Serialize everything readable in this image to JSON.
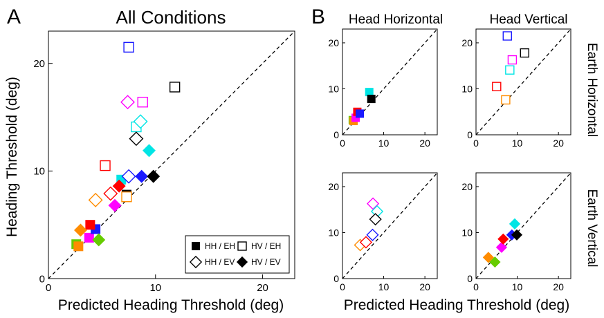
{
  "panel_labels": {
    "a": "A",
    "b": "B"
  },
  "texts": {
    "main_title": "All Conditions",
    "main_xlabel": "Predicted Heading Threshold (deg)",
    "main_ylabel": "Heading Threshold (deg)",
    "col_head_horizontal": "Head Horizontal",
    "col_head_vertical": "Head Vertical",
    "row_earth_horizontal": "Earth Horizontal",
    "row_earth_vertical": "Earth Vertical",
    "grid_xlabel": "Predicted Heading Threshold (deg)"
  },
  "legend": [
    {
      "marker": "filled-square",
      "label": "HH / EH"
    },
    {
      "marker": "open-square",
      "label": "HV / EH"
    },
    {
      "marker": "open-diamond",
      "label": "HH / EV"
    },
    {
      "marker": "filled-diamond",
      "label": "HV / EV"
    }
  ],
  "colors": {
    "red": "#ff0000",
    "orange": "#ff8c00",
    "green": "#66cc00",
    "blue": "#1a1aff",
    "magenta": "#ff00ff",
    "cyan": "#00e5e5",
    "black": "#000000",
    "unity_line": "#000000"
  },
  "chart_data": [
    {
      "id": "all_conditions",
      "type": "scatter",
      "title": "All Conditions",
      "xlabel": "Predicted Heading Threshold (deg)",
      "ylabel": "Heading Threshold (deg)",
      "xlim": [
        0,
        23
      ],
      "ylim": [
        0,
        23
      ],
      "xticks": [
        0,
        10,
        20
      ],
      "yticks": [
        0,
        10,
        20
      ],
      "reference_line": "unity (dashed)",
      "legend_position": "bottom-right",
      "points": [
        {
          "x": 3.8,
          "y": 3.8,
          "marker": "filled-square",
          "color": "magenta"
        },
        {
          "x": 2.6,
          "y": 3.2,
          "marker": "filled-square",
          "color": "green"
        },
        {
          "x": 2.8,
          "y": 3.0,
          "marker": "filled-square",
          "color": "orange"
        },
        {
          "x": 4.4,
          "y": 4.6,
          "marker": "filled-square",
          "color": "blue"
        },
        {
          "x": 3.9,
          "y": 5.0,
          "marker": "filled-square",
          "color": "red"
        },
        {
          "x": 6.8,
          "y": 9.2,
          "marker": "filled-square",
          "color": "cyan"
        },
        {
          "x": 7.3,
          "y": 7.8,
          "marker": "filled-square",
          "color": "black"
        },
        {
          "x": 5.3,
          "y": 10.5,
          "marker": "open-square",
          "color": "red"
        },
        {
          "x": 7.3,
          "y": 7.6,
          "marker": "open-square",
          "color": "orange"
        },
        {
          "x": 7.5,
          "y": 21.5,
          "marker": "open-square",
          "color": "blue"
        },
        {
          "x": 8.8,
          "y": 16.4,
          "marker": "open-square",
          "color": "magenta"
        },
        {
          "x": 8.2,
          "y": 14.1,
          "marker": "open-square",
          "color": "cyan"
        },
        {
          "x": 11.8,
          "y": 17.8,
          "marker": "open-square",
          "color": "black"
        },
        {
          "x": 4.4,
          "y": 7.3,
          "marker": "open-diamond",
          "color": "orange"
        },
        {
          "x": 5.8,
          "y": 7.9,
          "marker": "open-diamond",
          "color": "red"
        },
        {
          "x": 7.5,
          "y": 9.5,
          "marker": "open-diamond",
          "color": "blue"
        },
        {
          "x": 7.4,
          "y": 16.4,
          "marker": "open-diamond",
          "color": "magenta"
        },
        {
          "x": 8.6,
          "y": 14.6,
          "marker": "open-diamond",
          "color": "cyan"
        },
        {
          "x": 8.2,
          "y": 13.0,
          "marker": "open-diamond",
          "color": "black"
        },
        {
          "x": 3.0,
          "y": 4.5,
          "marker": "filled-diamond",
          "color": "orange"
        },
        {
          "x": 4.7,
          "y": 3.6,
          "marker": "filled-diamond",
          "color": "green"
        },
        {
          "x": 6.2,
          "y": 6.8,
          "marker": "filled-diamond",
          "color": "magenta"
        },
        {
          "x": 6.6,
          "y": 8.6,
          "marker": "filled-diamond",
          "color": "red"
        },
        {
          "x": 8.7,
          "y": 9.5,
          "marker": "filled-diamond",
          "color": "blue"
        },
        {
          "x": 9.4,
          "y": 11.9,
          "marker": "filled-diamond",
          "color": "cyan"
        },
        {
          "x": 9.8,
          "y": 9.5,
          "marker": "filled-diamond",
          "color": "black"
        }
      ]
    },
    {
      "id": "hh_eh",
      "type": "scatter",
      "xlim": [
        0,
        23
      ],
      "ylim": [
        0,
        23
      ],
      "xticks": [
        0,
        10,
        20
      ],
      "yticks": [
        0,
        10,
        20
      ],
      "reference_line": "unity (dashed)",
      "points": [
        {
          "x": 2.5,
          "y": 3.2,
          "marker": "filled-square",
          "color": "green"
        },
        {
          "x": 2.7,
          "y": 3.0,
          "marker": "filled-square",
          "color": "orange"
        },
        {
          "x": 3.2,
          "y": 3.7,
          "marker": "filled-square",
          "color": "magenta"
        },
        {
          "x": 3.6,
          "y": 5.0,
          "marker": "filled-square",
          "color": "red"
        },
        {
          "x": 4.2,
          "y": 4.6,
          "marker": "filled-square",
          "color": "blue"
        },
        {
          "x": 6.5,
          "y": 9.3,
          "marker": "filled-square",
          "color": "cyan"
        },
        {
          "x": 7.0,
          "y": 7.8,
          "marker": "filled-square",
          "color": "black"
        }
      ]
    },
    {
      "id": "hv_eh",
      "type": "scatter",
      "xlim": [
        0,
        23
      ],
      "ylim": [
        0,
        23
      ],
      "xticks": [
        0,
        10,
        20
      ],
      "yticks": [
        0,
        10,
        20
      ],
      "reference_line": "unity (dashed)",
      "points": [
        {
          "x": 5.0,
          "y": 10.5,
          "marker": "open-square",
          "color": "red"
        },
        {
          "x": 7.2,
          "y": 7.6,
          "marker": "open-square",
          "color": "orange"
        },
        {
          "x": 7.6,
          "y": 21.5,
          "marker": "open-square",
          "color": "blue"
        },
        {
          "x": 8.8,
          "y": 16.3,
          "marker": "open-square",
          "color": "magenta"
        },
        {
          "x": 8.2,
          "y": 14.1,
          "marker": "open-square",
          "color": "cyan"
        },
        {
          "x": 11.8,
          "y": 17.8,
          "marker": "open-square",
          "color": "black"
        }
      ]
    },
    {
      "id": "hh_ev",
      "type": "scatter",
      "xlim": [
        0,
        23
      ],
      "ylim": [
        0,
        23
      ],
      "xticks": [
        0,
        10,
        20
      ],
      "yticks": [
        0,
        10,
        20
      ],
      "reference_line": "unity (dashed)",
      "points": [
        {
          "x": 4.3,
          "y": 7.3,
          "marker": "open-diamond",
          "color": "orange"
        },
        {
          "x": 5.7,
          "y": 7.9,
          "marker": "open-diamond",
          "color": "red"
        },
        {
          "x": 7.3,
          "y": 9.5,
          "marker": "open-diamond",
          "color": "blue"
        },
        {
          "x": 7.4,
          "y": 16.3,
          "marker": "open-diamond",
          "color": "magenta"
        },
        {
          "x": 8.4,
          "y": 14.6,
          "marker": "open-diamond",
          "color": "cyan"
        },
        {
          "x": 8.0,
          "y": 12.9,
          "marker": "open-diamond",
          "color": "black"
        }
      ]
    },
    {
      "id": "hv_ev",
      "type": "scatter",
      "xlim": [
        0,
        23
      ],
      "ylim": [
        0,
        23
      ],
      "xticks": [
        0,
        10,
        20
      ],
      "yticks": [
        0,
        10,
        20
      ],
      "reference_line": "unity (dashed)",
      "points": [
        {
          "x": 3.0,
          "y": 4.6,
          "marker": "filled-diamond",
          "color": "orange"
        },
        {
          "x": 4.6,
          "y": 3.6,
          "marker": "filled-diamond",
          "color": "green"
        },
        {
          "x": 6.2,
          "y": 6.8,
          "marker": "filled-diamond",
          "color": "magenta"
        },
        {
          "x": 6.6,
          "y": 8.6,
          "marker": "filled-diamond",
          "color": "red"
        },
        {
          "x": 8.7,
          "y": 9.5,
          "marker": "filled-diamond",
          "color": "blue"
        },
        {
          "x": 9.4,
          "y": 11.9,
          "marker": "filled-diamond",
          "color": "cyan"
        },
        {
          "x": 9.9,
          "y": 9.5,
          "marker": "filled-diamond",
          "color": "black"
        }
      ]
    }
  ]
}
